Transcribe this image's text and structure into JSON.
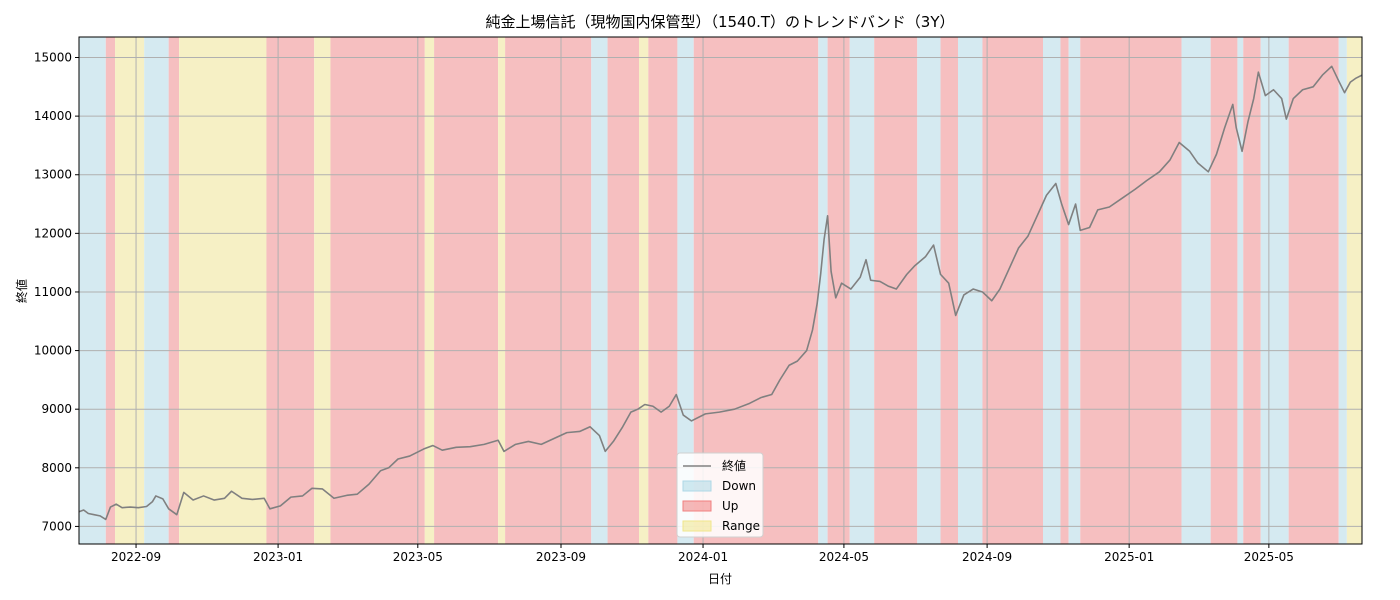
{
  "chart_data": {
    "type": "line",
    "title": "純金上場信託（現物国内保管型）（1540.T）のトレンドバンド（3Y）",
    "xlabel": "日付",
    "ylabel": "終値",
    "xlim": [
      "2022-07-14",
      "2025-07-20"
    ],
    "ylim": [
      6700,
      15350
    ],
    "grid": true,
    "x_ticks": [
      "2022-09",
      "2023-01",
      "2023-05",
      "2023-09",
      "2024-01",
      "2024-05",
      "2024-09",
      "2025-01",
      "2025-05"
    ],
    "y_ticks": [
      7000,
      8000,
      9000,
      10000,
      11000,
      12000,
      13000,
      14000,
      15000
    ],
    "legend": {
      "position": "bottom-center",
      "entries": [
        {
          "label": "終値",
          "kind": "line",
          "color": "#808080"
        },
        {
          "label": "Down",
          "kind": "band",
          "color": "#add8e6"
        },
        {
          "label": "Up",
          "kind": "band",
          "color": "#f08080"
        },
        {
          "label": "Range",
          "kind": "band",
          "color": "#f0e68c"
        }
      ]
    },
    "band_colors": {
      "Down": "#d5eaf1",
      "Up": "#f6bfc0",
      "Range": "#f6f0c5"
    },
    "bands": [
      {
        "start": "2022-07-14",
        "end": "2022-08-06",
        "state": "Down"
      },
      {
        "start": "2022-08-06",
        "end": "2022-08-14",
        "state": "Up"
      },
      {
        "start": "2022-08-14",
        "end": "2022-09-08",
        "state": "Range"
      },
      {
        "start": "2022-09-08",
        "end": "2022-09-29",
        "state": "Down"
      },
      {
        "start": "2022-09-29",
        "end": "2022-10-08",
        "state": "Up"
      },
      {
        "start": "2022-10-08",
        "end": "2022-12-22",
        "state": "Range"
      },
      {
        "start": "2022-12-22",
        "end": "2023-02-01",
        "state": "Up"
      },
      {
        "start": "2023-02-01",
        "end": "2023-02-15",
        "state": "Range"
      },
      {
        "start": "2023-02-15",
        "end": "2023-05-07",
        "state": "Up"
      },
      {
        "start": "2023-05-07",
        "end": "2023-05-15",
        "state": "Range"
      },
      {
        "start": "2023-05-15",
        "end": "2023-07-09",
        "state": "Up"
      },
      {
        "start": "2023-07-09",
        "end": "2023-07-15",
        "state": "Range"
      },
      {
        "start": "2023-07-15",
        "end": "2023-09-27",
        "state": "Up"
      },
      {
        "start": "2023-09-27",
        "end": "2023-10-11",
        "state": "Down"
      },
      {
        "start": "2023-10-11",
        "end": "2023-11-07",
        "state": "Up"
      },
      {
        "start": "2023-11-07",
        "end": "2023-11-15",
        "state": "Range"
      },
      {
        "start": "2023-11-15",
        "end": "2023-12-10",
        "state": "Up"
      },
      {
        "start": "2023-12-10",
        "end": "2023-12-24",
        "state": "Down"
      },
      {
        "start": "2023-12-24",
        "end": "2024-04-09",
        "state": "Up"
      },
      {
        "start": "2024-04-09",
        "end": "2024-04-17",
        "state": "Down"
      },
      {
        "start": "2024-04-17",
        "end": "2024-05-06",
        "state": "Up"
      },
      {
        "start": "2024-05-06",
        "end": "2024-05-27",
        "state": "Down"
      },
      {
        "start": "2024-05-27",
        "end": "2024-07-03",
        "state": "Up"
      },
      {
        "start": "2024-07-03",
        "end": "2024-07-23",
        "state": "Down"
      },
      {
        "start": "2024-07-23",
        "end": "2024-08-07",
        "state": "Up"
      },
      {
        "start": "2024-08-07",
        "end": "2024-08-28",
        "state": "Down"
      },
      {
        "start": "2024-08-28",
        "end": "2024-10-19",
        "state": "Up"
      },
      {
        "start": "2024-10-19",
        "end": "2024-11-03",
        "state": "Down"
      },
      {
        "start": "2024-11-03",
        "end": "2024-11-10",
        "state": "Up"
      },
      {
        "start": "2024-11-10",
        "end": "2024-11-20",
        "state": "Down"
      },
      {
        "start": "2024-11-20",
        "end": "2025-02-15",
        "state": "Up"
      },
      {
        "start": "2025-02-15",
        "end": "2025-03-12",
        "state": "Down"
      },
      {
        "start": "2025-03-12",
        "end": "2025-04-04",
        "state": "Up"
      },
      {
        "start": "2025-04-04",
        "end": "2025-04-09",
        "state": "Down"
      },
      {
        "start": "2025-04-09",
        "end": "2025-04-24",
        "state": "Up"
      },
      {
        "start": "2025-04-24",
        "end": "2025-05-18",
        "state": "Down"
      },
      {
        "start": "2025-05-18",
        "end": "2025-06-30",
        "state": "Up"
      },
      {
        "start": "2025-06-30",
        "end": "2025-07-07",
        "state": "Down"
      },
      {
        "start": "2025-07-07",
        "end": "2025-07-20",
        "state": "Range"
      }
    ],
    "series": [
      {
        "name": "終値",
        "color": "#808080",
        "points": [
          [
            "2022-07-14",
            7250
          ],
          [
            "2022-07-18",
            7280
          ],
          [
            "2022-07-22",
            7220
          ],
          [
            "2022-07-27",
            7200
          ],
          [
            "2022-08-01",
            7180
          ],
          [
            "2022-08-06",
            7120
          ],
          [
            "2022-08-10",
            7330
          ],
          [
            "2022-08-15",
            7380
          ],
          [
            "2022-08-20",
            7320
          ],
          [
            "2022-08-27",
            7330
          ],
          [
            "2022-09-03",
            7320
          ],
          [
            "2022-09-10",
            7340
          ],
          [
            "2022-09-15",
            7420
          ],
          [
            "2022-09-18",
            7520
          ],
          [
            "2022-09-24",
            7470
          ],
          [
            "2022-09-29",
            7300
          ],
          [
            "2022-10-06",
            7200
          ],
          [
            "2022-10-12",
            7580
          ],
          [
            "2022-10-20",
            7450
          ],
          [
            "2022-10-29",
            7520
          ],
          [
            "2022-11-07",
            7450
          ],
          [
            "2022-11-16",
            7480
          ],
          [
            "2022-11-22",
            7600
          ],
          [
            "2022-12-01",
            7480
          ],
          [
            "2022-12-10",
            7460
          ],
          [
            "2022-12-20",
            7480
          ],
          [
            "2022-12-25",
            7300
          ],
          [
            "2023-01-03",
            7350
          ],
          [
            "2023-01-12",
            7500
          ],
          [
            "2023-01-22",
            7520
          ],
          [
            "2023-01-30",
            7650
          ],
          [
            "2023-02-08",
            7640
          ],
          [
            "2023-02-18",
            7480
          ],
          [
            "2023-03-01",
            7530
          ],
          [
            "2023-03-10",
            7550
          ],
          [
            "2023-03-20",
            7720
          ],
          [
            "2023-03-30",
            7950
          ],
          [
            "2023-04-06",
            8000
          ],
          [
            "2023-04-14",
            8150
          ],
          [
            "2023-04-24",
            8200
          ],
          [
            "2023-05-06",
            8320
          ],
          [
            "2023-05-14",
            8380
          ],
          [
            "2023-05-22",
            8300
          ],
          [
            "2023-06-03",
            8350
          ],
          [
            "2023-06-15",
            8360
          ],
          [
            "2023-06-27",
            8400
          ],
          [
            "2023-07-09",
            8470
          ],
          [
            "2023-07-14",
            8280
          ],
          [
            "2023-07-24",
            8400
          ],
          [
            "2023-08-04",
            8450
          ],
          [
            "2023-08-15",
            8400
          ],
          [
            "2023-08-26",
            8500
          ],
          [
            "2023-09-06",
            8600
          ],
          [
            "2023-09-17",
            8620
          ],
          [
            "2023-09-26",
            8700
          ],
          [
            "2023-10-04",
            8550
          ],
          [
            "2023-10-09",
            8280
          ],
          [
            "2023-10-16",
            8450
          ],
          [
            "2023-10-24",
            8700
          ],
          [
            "2023-10-31",
            8950
          ],
          [
            "2023-11-06",
            9000
          ],
          [
            "2023-11-12",
            9080
          ],
          [
            "2023-11-19",
            9050
          ],
          [
            "2023-11-26",
            8950
          ],
          [
            "2023-12-03",
            9050
          ],
          [
            "2023-12-09",
            9250
          ],
          [
            "2023-12-15",
            8900
          ],
          [
            "2023-12-22",
            8800
          ],
          [
            "2024-01-03",
            8920
          ],
          [
            "2024-01-15",
            8950
          ],
          [
            "2024-01-28",
            9000
          ],
          [
            "2024-02-10",
            9100
          ],
          [
            "2024-02-20",
            9200
          ],
          [
            "2024-02-29",
            9250
          ],
          [
            "2024-03-07",
            9500
          ],
          [
            "2024-03-15",
            9750
          ],
          [
            "2024-03-22",
            9820
          ],
          [
            "2024-03-30",
            10000
          ],
          [
            "2024-04-04",
            10350
          ],
          [
            "2024-04-08",
            10800
          ],
          [
            "2024-04-11",
            11300
          ],
          [
            "2024-04-14",
            11900
          ],
          [
            "2024-04-17",
            12300
          ],
          [
            "2024-04-20",
            11350
          ],
          [
            "2024-04-24",
            10900
          ],
          [
            "2024-04-29",
            11150
          ],
          [
            "2024-05-07",
            11050
          ],
          [
            "2024-05-15",
            11250
          ],
          [
            "2024-05-20",
            11550
          ],
          [
            "2024-05-24",
            11200
          ],
          [
            "2024-06-01",
            11180
          ],
          [
            "2024-06-08",
            11100
          ],
          [
            "2024-06-15",
            11050
          ],
          [
            "2024-06-24",
            11300
          ],
          [
            "2024-07-01",
            11450
          ],
          [
            "2024-07-10",
            11600
          ],
          [
            "2024-07-17",
            11800
          ],
          [
            "2024-07-23",
            11300
          ],
          [
            "2024-07-30",
            11150
          ],
          [
            "2024-08-05",
            10600
          ],
          [
            "2024-08-12",
            10950
          ],
          [
            "2024-08-20",
            11050
          ],
          [
            "2024-08-28",
            11000
          ],
          [
            "2024-09-05",
            10850
          ],
          [
            "2024-09-12",
            11050
          ],
          [
            "2024-09-20",
            11400
          ],
          [
            "2024-09-28",
            11750
          ],
          [
            "2024-10-06",
            11950
          ],
          [
            "2024-10-14",
            12300
          ],
          [
            "2024-10-22",
            12650
          ],
          [
            "2024-10-30",
            12850
          ],
          [
            "2024-11-04",
            12500
          ],
          [
            "2024-11-10",
            12150
          ],
          [
            "2024-11-16",
            12500
          ],
          [
            "2024-11-20",
            12050
          ],
          [
            "2024-11-28",
            12100
          ],
          [
            "2024-12-05",
            12400
          ],
          [
            "2024-12-15",
            12450
          ],
          [
            "2024-12-26",
            12600
          ],
          [
            "2025-01-06",
            12750
          ],
          [
            "2025-01-16",
            12900
          ],
          [
            "2025-01-27",
            13050
          ],
          [
            "2025-02-05",
            13250
          ],
          [
            "2025-02-13",
            13550
          ],
          [
            "2025-02-22",
            13400
          ],
          [
            "2025-03-01",
            13200
          ],
          [
            "2025-03-10",
            13050
          ],
          [
            "2025-03-17",
            13350
          ],
          [
            "2025-03-24",
            13800
          ],
          [
            "2025-03-31",
            14200
          ],
          [
            "2025-04-03",
            13800
          ],
          [
            "2025-04-08",
            13400
          ],
          [
            "2025-04-13",
            13900
          ],
          [
            "2025-04-18",
            14300
          ],
          [
            "2025-04-22",
            14750
          ],
          [
            "2025-04-28",
            14350
          ],
          [
            "2025-05-05",
            14450
          ],
          [
            "2025-05-12",
            14300
          ],
          [
            "2025-05-16",
            13950
          ],
          [
            "2025-05-22",
            14300
          ],
          [
            "2025-05-30",
            14450
          ],
          [
            "2025-06-08",
            14500
          ],
          [
            "2025-06-16",
            14700
          ],
          [
            "2025-06-24",
            14850
          ],
          [
            "2025-06-30",
            14600
          ],
          [
            "2025-07-05",
            14400
          ],
          [
            "2025-07-10",
            14580
          ],
          [
            "2025-07-15",
            14650
          ],
          [
            "2025-07-20",
            14700
          ]
        ]
      }
    ]
  }
}
